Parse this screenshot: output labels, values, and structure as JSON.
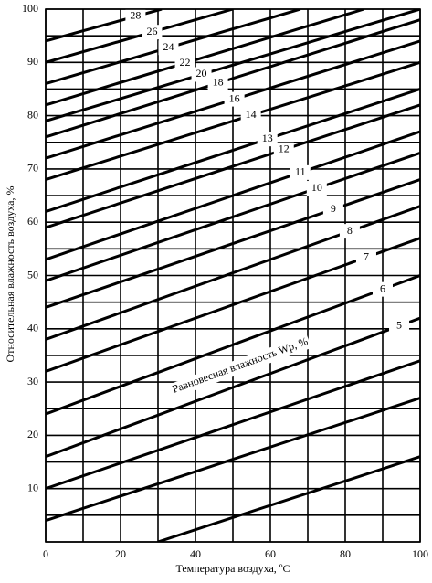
{
  "chart_data": {
    "type": "line",
    "xlabel": "Температура воздуха, ºC",
    "ylabel": "Относительная влажность воздуха, %",
    "annotation": "Равновесная влажность Wр, %",
    "xlim": [
      0,
      100
    ],
    "xticks": [
      0,
      20,
      40,
      60,
      80,
      100
    ],
    "xgrid": [
      0,
      10,
      20,
      30,
      40,
      50,
      60,
      70,
      80,
      90,
      100
    ],
    "ylim": [
      0,
      100
    ],
    "yticks": [
      10,
      20,
      30,
      40,
      50,
      60,
      70,
      80,
      90,
      100
    ],
    "ygrid": [
      0,
      5,
      10,
      15,
      20,
      25,
      30,
      35,
      40,
      45,
      50,
      55,
      60,
      65,
      70,
      75,
      80,
      85,
      90,
      95,
      100
    ],
    "grid": true,
    "color": "#000000",
    "series": [
      {
        "name": "28",
        "x": [
          0,
          31
        ],
        "values": [
          94,
          100
        ]
      },
      {
        "name": "26",
        "x": [
          0,
          50
        ],
        "values": [
          90,
          100
        ]
      },
      {
        "name": "24",
        "x": [
          0,
          68
        ],
        "values": [
          86,
          100
        ]
      },
      {
        "name": "22",
        "x": [
          0,
          85
        ],
        "values": [
          82,
          100
        ]
      },
      {
        "name": "20",
        "x": [
          0,
          100
        ],
        "values": [
          79,
          100
        ]
      },
      {
        "name": "18",
        "x": [
          0,
          100
        ],
        "values": [
          76,
          98
        ]
      },
      {
        "name": "16",
        "x": [
          0,
          100
        ],
        "values": [
          72,
          94
        ]
      },
      {
        "name": "14",
        "x": [
          0,
          100
        ],
        "values": [
          68,
          90
        ]
      },
      {
        "name": "13",
        "x": [
          0,
          100
        ],
        "values": [
          62,
          85
        ]
      },
      {
        "name": "12",
        "x": [
          0,
          100
        ],
        "values": [
          59,
          82
        ]
      },
      {
        "name": "11",
        "x": [
          0,
          100
        ],
        "values": [
          53,
          77
        ]
      },
      {
        "name": "10",
        "x": [
          0,
          100
        ],
        "values": [
          49,
          73
        ]
      },
      {
        "name": "9",
        "x": [
          0,
          100
        ],
        "values": [
          44,
          68
        ]
      },
      {
        "name": "8",
        "x": [
          0,
          100
        ],
        "values": [
          38,
          63
        ]
      },
      {
        "name": "7",
        "x": [
          0,
          100
        ],
        "values": [
          32,
          57
        ]
      },
      {
        "name": "6",
        "x": [
          0,
          100
        ],
        "values": [
          24,
          50
        ]
      },
      {
        "name": "5",
        "x": [
          0,
          100
        ],
        "values": [
          16,
          42
        ]
      },
      {
        "x": [
          0,
          100
        ],
        "values": [
          10,
          34
        ]
      },
      {
        "x": [
          0,
          100
        ],
        "values": [
          4,
          27
        ]
      },
      {
        "x": [
          30,
          100
        ],
        "values": [
          0,
          16
        ]
      }
    ]
  }
}
